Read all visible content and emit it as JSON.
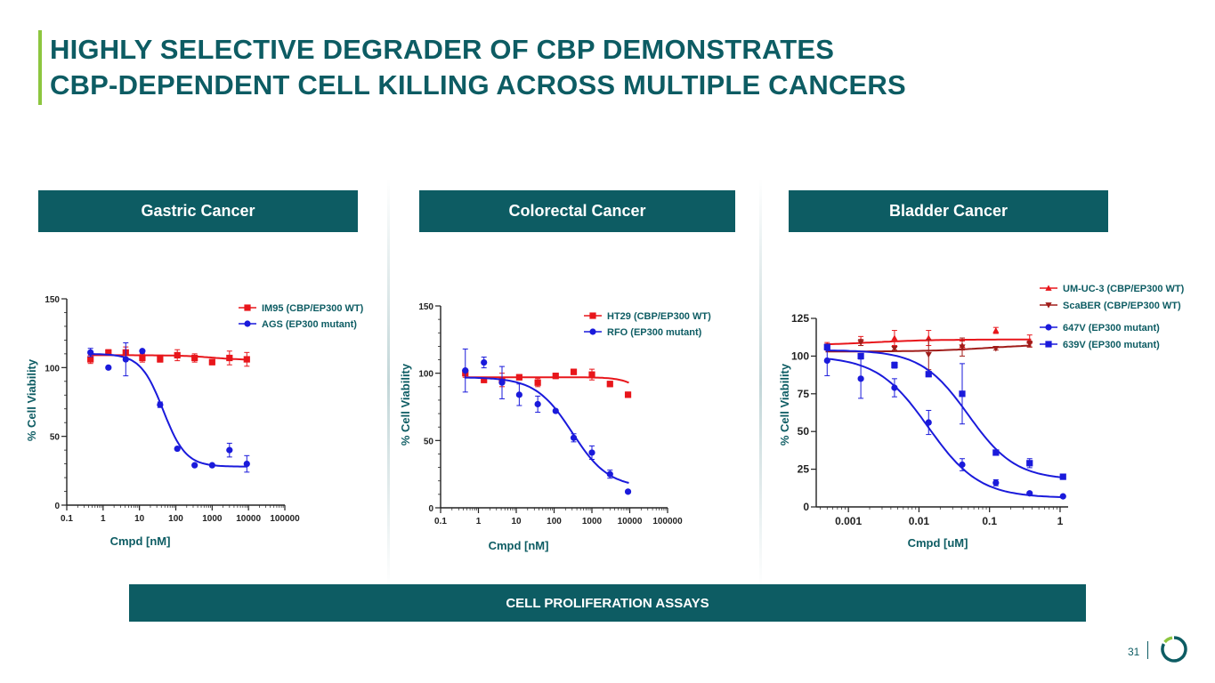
{
  "title": {
    "line1": "HIGHLY SELECTIVE DEGRADER OF CBP DEMONSTRATES",
    "line2": "CBP-DEPENDENT CELL KILLING ACROSS MULTIPLE CANCERS"
  },
  "panels": [
    {
      "label": "Gastric Cancer"
    },
    {
      "label": "Colorectal Cancer"
    },
    {
      "label": "Bladder Cancer"
    }
  ],
  "footer": {
    "label": "CELL PROLIFERATION ASSAYS"
  },
  "page_number": "31",
  "colors": {
    "brand": "#0d5c63",
    "accent": "#8dc63f",
    "red": "#e8161b",
    "blue": "#1a1adb",
    "darkred": "#a01d1a"
  },
  "chart_data": [
    {
      "type": "scatter",
      "title": "Gastric Cancer",
      "xlabel": "Cmpd [nM]",
      "ylabel": "% Cell Viability",
      "xscale": "log",
      "xlim": [
        0.1,
        100000
      ],
      "ylim": [
        0,
        150
      ],
      "xticks": [
        "0.1",
        "1",
        "10",
        "100",
        "1000",
        "10000",
        "100000"
      ],
      "yticks": [
        "0",
        "50",
        "100",
        "150"
      ],
      "legend_position": "top-right",
      "series": [
        {
          "name": "IM95 (CBP/EP300 WT)",
          "color": "#e8161b",
          "marker": "square",
          "x": [
            0.45,
            1.4,
            4.2,
            12,
            37,
            110,
            330,
            1000,
            3000,
            9000
          ],
          "y": [
            106,
            111,
            111,
            107,
            106,
            109,
            107,
            104,
            107,
            106
          ],
          "err": [
            3,
            2,
            4,
            3,
            2,
            4,
            3,
            2,
            5,
            5
          ],
          "fit": {
            "top": 109,
            "bottom": 105.5,
            "ic50": 1000,
            "hill": 1
          }
        },
        {
          "name": "AGS (EP300 mutant)",
          "color": "#1a1adb",
          "marker": "circle",
          "x": [
            0.45,
            1.4,
            4.2,
            12,
            37,
            110,
            330,
            1000,
            3000,
            9000
          ],
          "y": [
            111,
            100,
            106,
            112,
            73,
            41,
            29,
            29,
            40,
            30
          ],
          "err": [
            3,
            0,
            12,
            0,
            2,
            0,
            0,
            0,
            5,
            6
          ],
          "fit": {
            "top": 110,
            "bottom": 28,
            "ic50": 45,
            "hill": 1.4
          }
        }
      ]
    },
    {
      "type": "scatter",
      "title": "Colorectal Cancer",
      "xlabel": "Cmpd [nM]",
      "ylabel": "% Cell Viability",
      "xscale": "log",
      "xlim": [
        0.1,
        100000
      ],
      "ylim": [
        0,
        150
      ],
      "xticks": [
        "0.1",
        "1",
        "10",
        "100",
        "1000",
        "10000",
        "100000"
      ],
      "yticks": [
        "0",
        "50",
        "100",
        "150"
      ],
      "legend_position": "top-right",
      "series": [
        {
          "name": "HT29 (CBP/EP300 WT)",
          "color": "#e8161b",
          "marker": "square",
          "x": [
            0.45,
            1.4,
            4.2,
            12,
            37,
            110,
            330,
            1000,
            3000,
            9000
          ],
          "y": [
            100,
            95,
            95,
            97,
            93,
            98,
            101,
            99,
            92,
            84
          ],
          "err": [
            3,
            2,
            5,
            2,
            3,
            2,
            2,
            4,
            2,
            2
          ],
          "fit": {
            "top": 97,
            "bottom": 70,
            "ic50": 30000,
            "hill": 1.5
          }
        },
        {
          "name": "RFO (EP300 mutant)",
          "color": "#1a1adb",
          "marker": "circle",
          "x": [
            0.45,
            1.4,
            4.2,
            12,
            37,
            110,
            330,
            1000,
            3000,
            9000
          ],
          "y": [
            102,
            108,
            93,
            84,
            77,
            72,
            52,
            41,
            25,
            12
          ],
          "err": [
            16,
            4,
            12,
            8,
            6,
            0,
            3,
            5,
            3,
            0
          ],
          "fit": {
            "top": 97,
            "bottom": 15,
            "ic50": 300,
            "hill": 0.9
          }
        }
      ]
    },
    {
      "type": "scatter",
      "title": "Bladder Cancer",
      "xlabel": "Cmpd [uM]",
      "ylabel": "% Cell Viability",
      "xscale": "log",
      "xlim": [
        0.00035,
        1.3
      ],
      "ylim": [
        0,
        125
      ],
      "xticks": [
        "0.001",
        "0.01",
        "0.1",
        "1"
      ],
      "yticks": [
        "0",
        "25",
        "50",
        "75",
        "100",
        "125"
      ],
      "legend_position": "top-right",
      "series": [
        {
          "name": "UM-UC-3 (CBP/EP300 WT)",
          "color": "#e8161b",
          "marker": "triangle-up",
          "x": [
            0.0005,
            0.0015,
            0.0045,
            0.0137,
            0.041,
            0.123,
            0.37
          ],
          "y": [
            107,
            110,
            112,
            112,
            107,
            117,
            110
          ],
          "err": [
            2,
            3,
            5,
            5,
            3,
            2,
            4
          ],
          "fit": {
            "top": 107,
            "bottom": 111,
            "ic50": 0.002,
            "hill": 1
          }
        },
        {
          "name": "ScaBER (CBP/EP300 WT)",
          "color": "#a01d1a",
          "marker": "triangle-down",
          "x": [
            0.0005,
            0.0015,
            0.0045,
            0.0137,
            0.041,
            0.123,
            0.37
          ],
          "y": [
            106,
            109,
            105,
            101,
            106,
            105,
            108
          ],
          "err": [
            2,
            2,
            1,
            10,
            6,
            1,
            2
          ],
          "fit": {
            "top": 103,
            "bottom": 108,
            "ic50": 0.1,
            "hill": 1
          }
        },
        {
          "name": "647V (EP300 mutant)",
          "color": "#1a1adb",
          "marker": "circle",
          "x": [
            0.0005,
            0.0015,
            0.0045,
            0.0137,
            0.041,
            0.123,
            0.37,
            1.1
          ],
          "y": [
            97,
            85,
            79,
            56,
            28,
            16,
            9,
            7
          ],
          "err": [
            10,
            13,
            6,
            8,
            4,
            2,
            1,
            0
          ],
          "fit": {
            "top": 100,
            "bottom": 6,
            "ic50": 0.0135,
            "hill": 1.2
          }
        },
        {
          "name": "639V (EP300 mutant)",
          "color": "#1a1adb",
          "marker": "square",
          "x": [
            0.0005,
            0.0015,
            0.0045,
            0.0137,
            0.041,
            0.123,
            0.37,
            1.1
          ],
          "y": [
            106,
            100,
            94,
            88,
            75,
            36,
            29,
            20
          ],
          "err": [
            1,
            1,
            2,
            0,
            20,
            0,
            3,
            0
          ],
          "fit": {
            "top": 104,
            "bottom": 18,
            "ic50": 0.05,
            "hill": 1.3
          }
        }
      ]
    }
  ]
}
